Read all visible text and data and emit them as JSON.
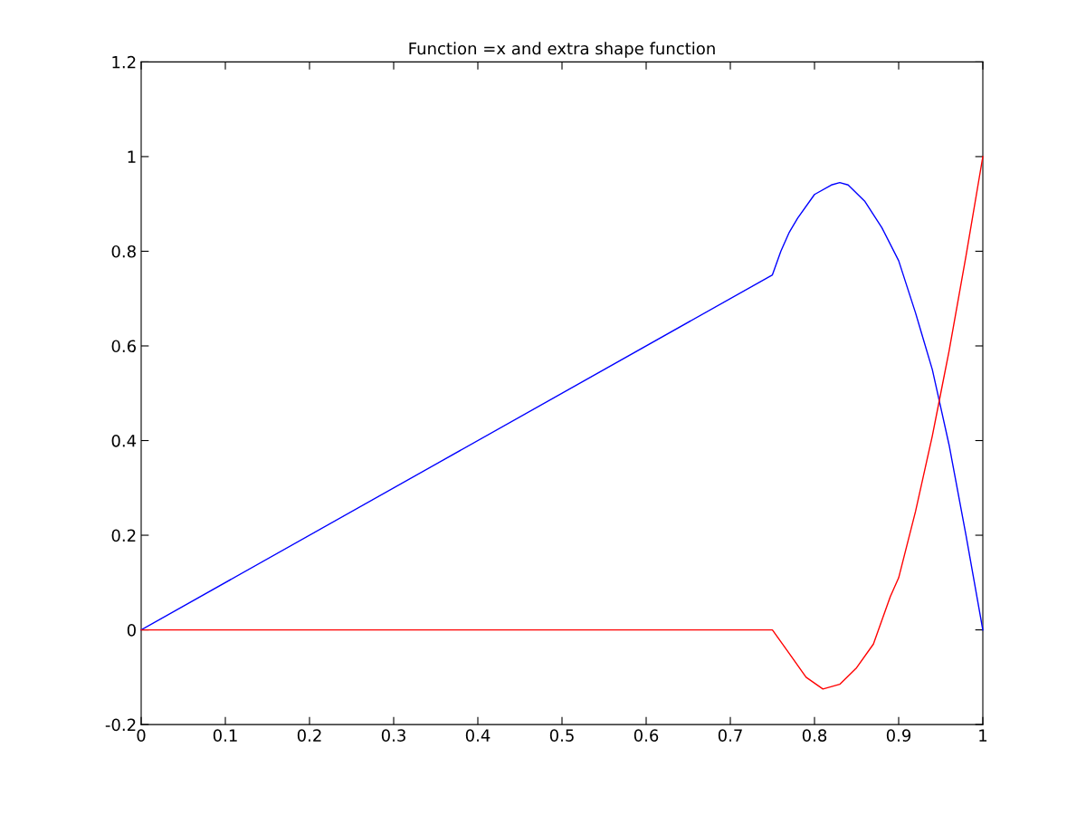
{
  "chart_data": {
    "type": "line",
    "title": "Function =x and extra shape function",
    "xlim": [
      0,
      1
    ],
    "xticks": [
      0,
      0.1,
      0.2,
      0.3,
      0.4,
      0.5,
      0.6,
      0.7,
      0.8,
      0.9,
      1
    ],
    "ylim": [
      -0.2,
      1.2
    ],
    "yticks": [
      -0.2,
      0,
      0.2,
      0.4,
      0.6,
      0.8,
      1,
      1.2
    ],
    "grid": false,
    "legend": false,
    "series": [
      {
        "color": "#0000ff",
        "x": [
          0,
          0.75,
          0.76,
          0.77,
          0.78,
          0.8,
          0.82,
          0.83,
          0.84,
          0.86,
          0.88,
          0.9,
          0.92,
          0.94,
          0.95,
          0.96,
          0.98,
          1
        ],
        "values": [
          0,
          0.75,
          0.8,
          0.84,
          0.87,
          0.92,
          0.94,
          0.945,
          0.94,
          0.905,
          0.85,
          0.78,
          0.67,
          0.55,
          0.47,
          0.39,
          0.2,
          0
        ]
      },
      {
        "color": "#ff0000",
        "x": [
          0,
          0.75,
          0.77,
          0.79,
          0.81,
          0.83,
          0.85,
          0.87,
          0.89,
          0.9,
          0.92,
          0.94,
          0.95,
          0.96,
          0.98,
          1
        ],
        "values": [
          0,
          0,
          -0.05,
          -0.1,
          -0.125,
          -0.115,
          -0.08,
          -0.03,
          0.07,
          0.11,
          0.25,
          0.41,
          0.5,
          0.59,
          0.79,
          1
        ]
      }
    ]
  }
}
